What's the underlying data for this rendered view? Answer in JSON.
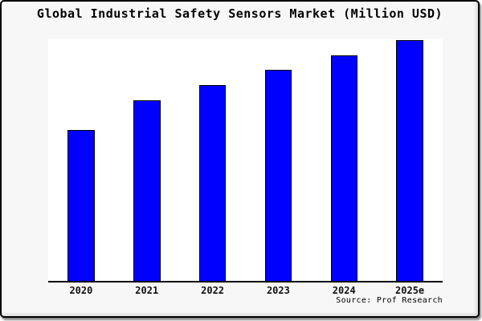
{
  "chart_data": {
    "type": "bar",
    "title": "Global Industrial Safety Sensors Market (Million USD)",
    "categories": [
      "2020",
      "2021",
      "2022",
      "2023",
      "2024",
      "2025e"
    ],
    "values": [
      62.9,
      75.2,
      81.5,
      87.7,
      93.7,
      100
    ],
    "note": "No y-axis scale or gridlines shown; values are relative bar heights as % of tallest (2025e) bar",
    "xlabel": "",
    "ylabel": "",
    "ylim": [
      0,
      100.3
    ],
    "grid": false,
    "legend": null,
    "source_note": "Source: Prof Research"
  },
  "colors": {
    "bar_fill": "#0000FF",
    "bar_border": "#000000",
    "plot_background": "#ffffff",
    "canvas_background": "#f7f7f7",
    "frame_border": "#000000",
    "text": "#000000"
  }
}
